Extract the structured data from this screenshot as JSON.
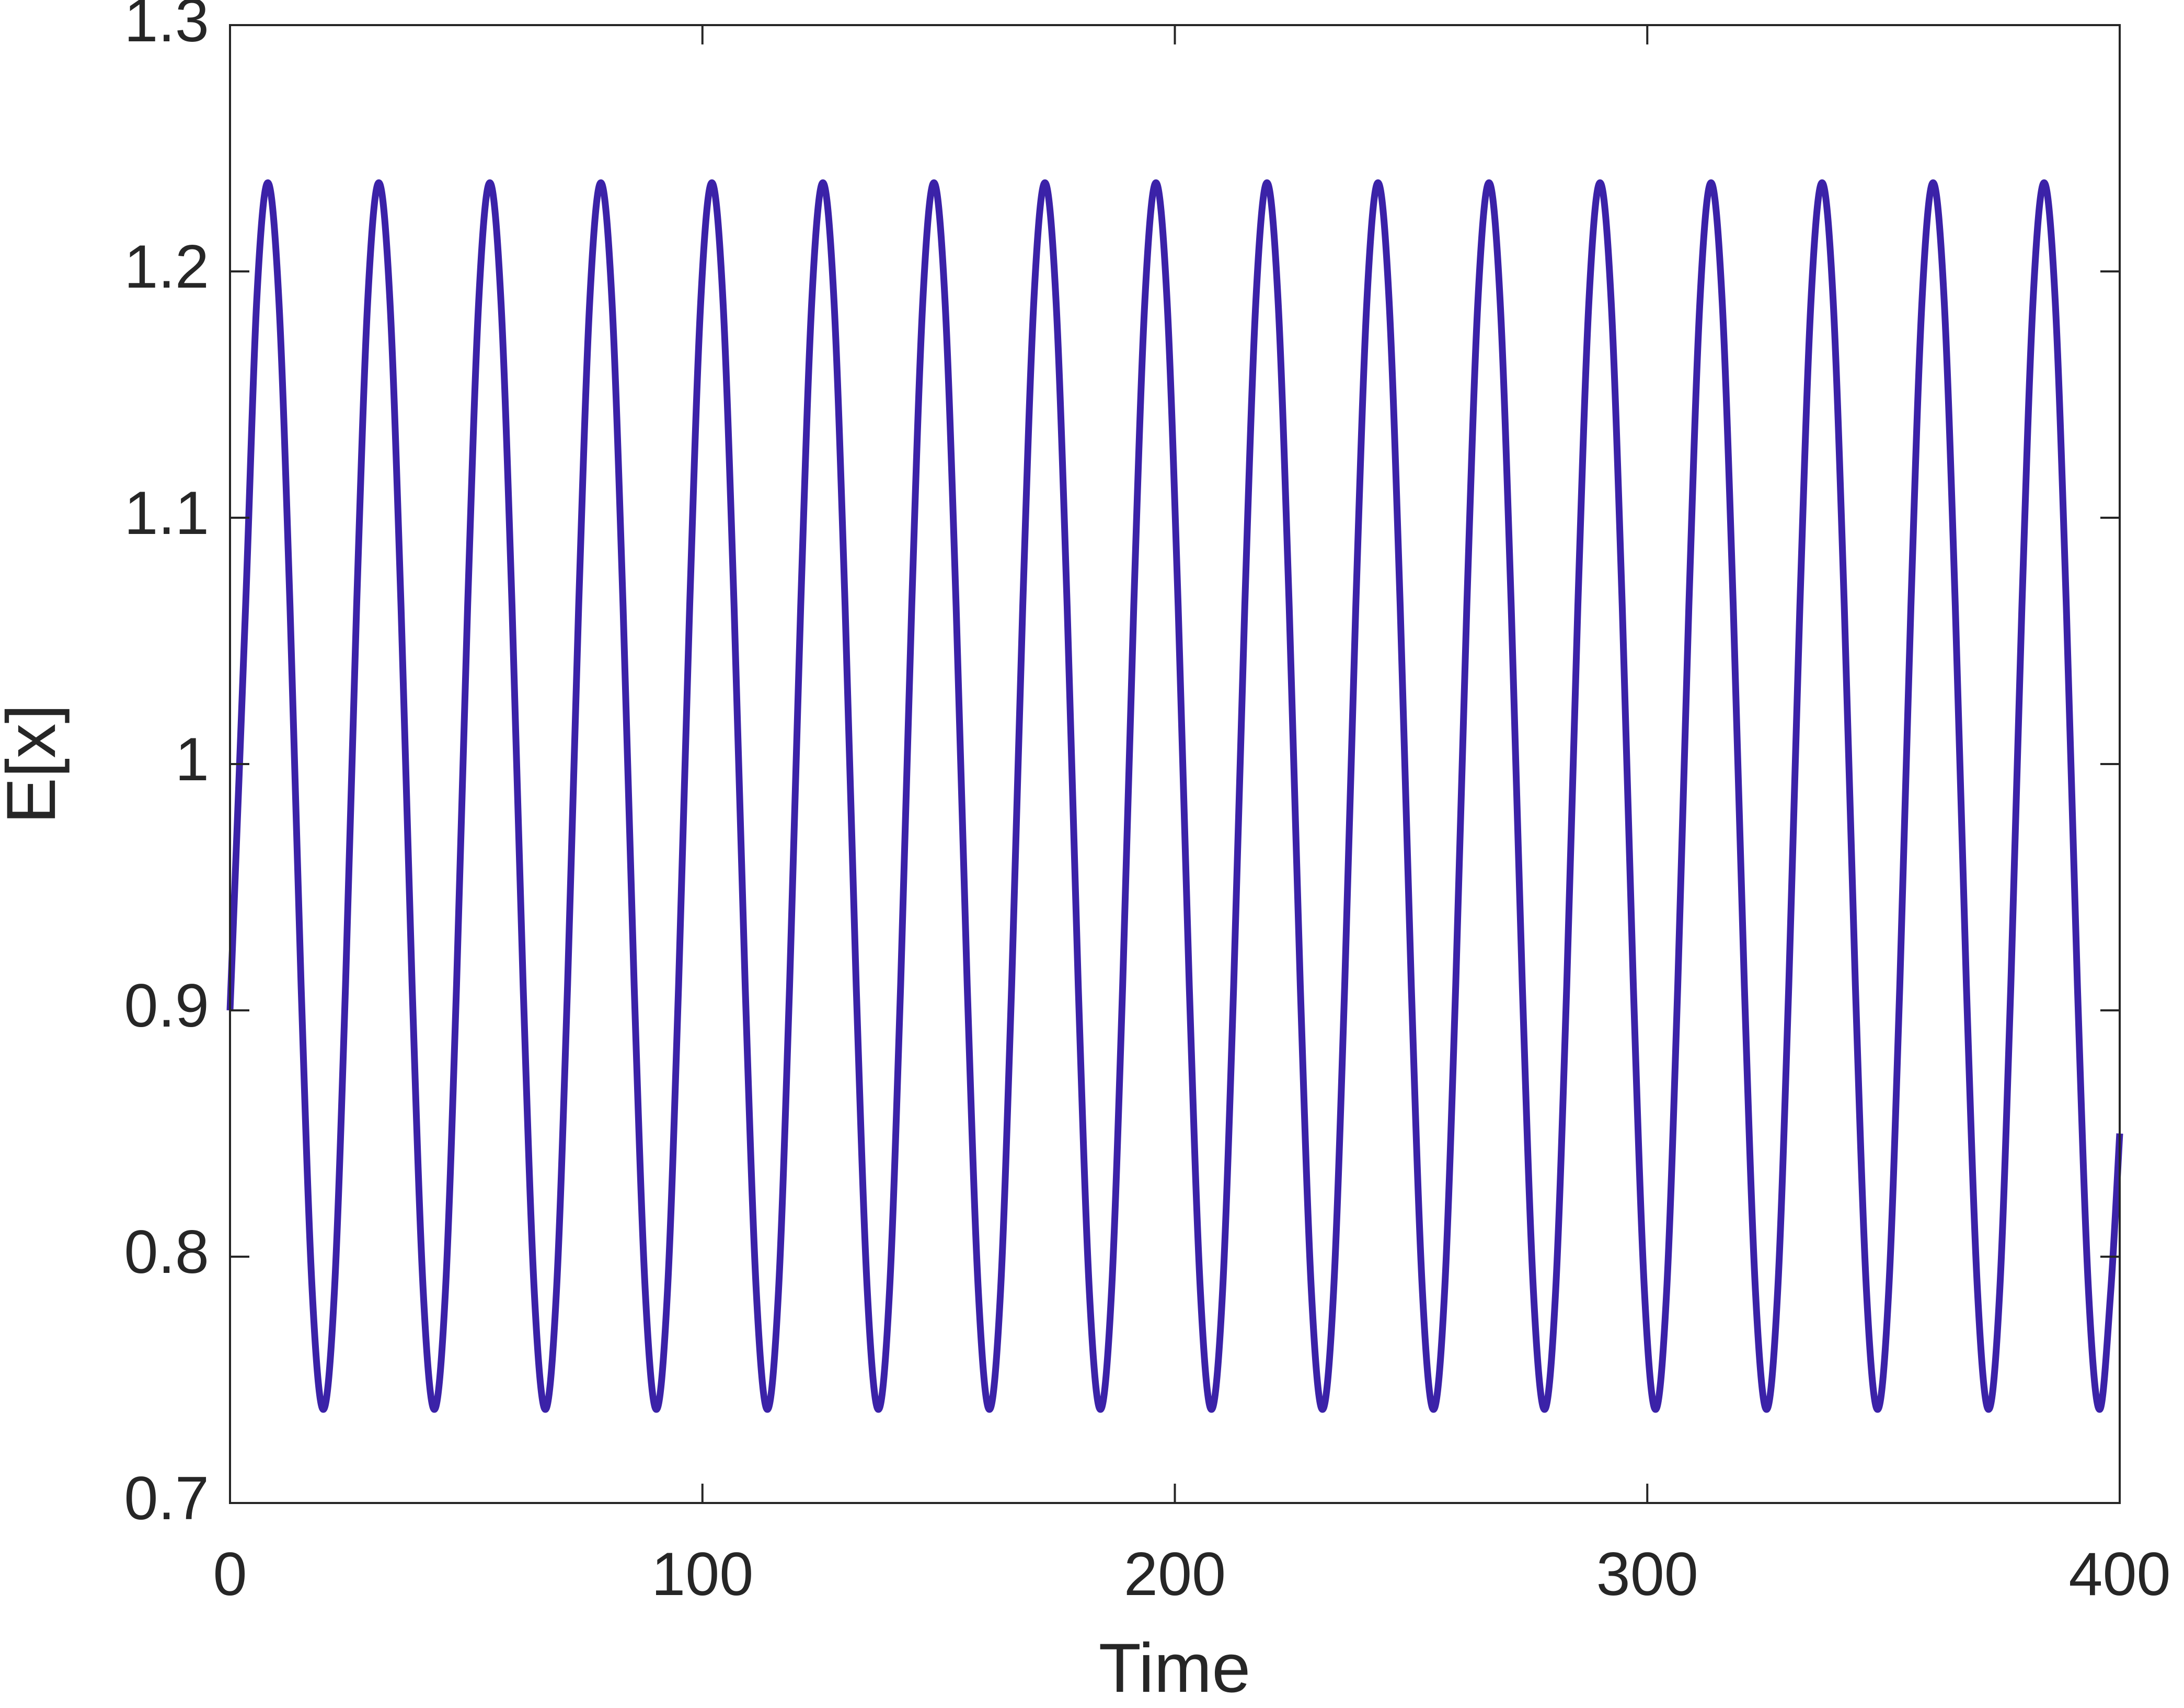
{
  "chart_data": {
    "type": "line",
    "xlabel": "Time",
    "ylabel": "E[x]",
    "xlim": [
      0,
      400
    ],
    "ylim": [
      0.7,
      1.3
    ],
    "xticks": [
      0,
      100,
      200,
      300,
      400
    ],
    "yticks": [
      0.7,
      0.8,
      0.9,
      1,
      1.1,
      1.2,
      1.3
    ],
    "x": [
      0,
      3.3,
      5.65,
      8,
      10.35,
      12.7,
      15.05,
      17.4,
      19.75,
      22.1,
      24.45,
      26.8,
      29.15,
      31.5,
      33.85,
      36.2,
      38.55,
      40.9,
      43.25,
      45.6,
      47.95,
      50.3,
      52.65,
      55,
      57.35,
      59.7,
      62.05,
      64.4,
      66.75,
      69.1,
      71.45,
      73.8,
      76.15,
      78.5,
      80.85,
      83.2,
      85.55,
      87.9,
      90.25,
      92.6,
      94.95,
      97.3,
      99.65,
      102,
      104.35,
      106.7,
      109.05,
      111.4,
      113.75,
      116.1,
      118.45,
      120.8,
      123.15,
      125.5,
      127.85,
      130.2,
      132.55,
      134.9,
      137.25,
      139.6,
      141.95,
      144.3,
      146.65,
      149,
      151.35,
      153.7,
      156.05,
      158.4,
      160.75,
      163.1,
      165.45,
      167.8,
      170.15,
      172.5,
      174.85,
      177.2,
      179.55,
      181.9,
      184.25,
      186.6,
      188.95,
      191.3,
      193.65,
      196,
      198.35,
      200.7,
      203.05,
      205.4,
      207.75,
      210.1,
      212.45,
      214.8,
      217.15,
      219.5,
      221.85,
      224.2,
      226.55,
      228.9,
      231.25,
      233.6,
      235.95,
      238.3,
      240.65,
      243,
      245.35,
      247.7,
      250.05,
      252.4,
      254.75,
      257.1,
      259.45,
      261.8,
      264.15,
      266.5,
      268.85,
      271.2,
      273.55,
      275.9,
      278.25,
      280.6,
      282.95,
      285.3,
      287.65,
      290,
      292.35,
      294.7,
      297.05,
      299.4,
      301.75,
      304.1,
      306.45,
      308.8,
      311.15,
      313.5,
      315.85,
      318.2,
      320.55,
      322.9,
      325.25,
      327.6,
      329.95,
      332.3,
      334.65,
      337,
      339.35,
      341.7,
      344.05,
      346.4,
      348.75,
      351.1,
      353.45,
      355.8,
      358.15,
      360.5,
      362.85,
      365.2,
      367.55,
      369.9,
      372.25,
      374.6,
      376.95,
      379.3,
      381.65,
      384,
      386.35,
      388.7,
      391.05,
      393.4,
      395.75,
      398.1,
      400
    ],
    "series": [
      {
        "color": "#3b22a8",
        "values": [
          0.9,
          1.064,
          1.188,
          1.236,
          1.188,
          1.064,
          0.91,
          0.786,
          0.738,
          0.786,
          0.91,
          1.064,
          1.188,
          1.236,
          1.188,
          1.064,
          0.91,
          0.786,
          0.738,
          0.786,
          0.91,
          1.064,
          1.188,
          1.236,
          1.188,
          1.064,
          0.91,
          0.786,
          0.738,
          0.786,
          0.91,
          1.064,
          1.188,
          1.236,
          1.188,
          1.064,
          0.91,
          0.786,
          0.738,
          0.786,
          0.91,
          1.064,
          1.188,
          1.236,
          1.188,
          1.064,
          0.91,
          0.786,
          0.738,
          0.786,
          0.91,
          1.064,
          1.188,
          1.236,
          1.188,
          1.064,
          0.91,
          0.786,
          0.738,
          0.786,
          0.91,
          1.064,
          1.188,
          1.236,
          1.188,
          1.064,
          0.91,
          0.786,
          0.738,
          0.786,
          0.91,
          1.064,
          1.188,
          1.236,
          1.188,
          1.064,
          0.91,
          0.786,
          0.738,
          0.786,
          0.91,
          1.064,
          1.188,
          1.236,
          1.188,
          1.064,
          0.91,
          0.786,
          0.738,
          0.786,
          0.91,
          1.064,
          1.188,
          1.236,
          1.188,
          1.064,
          0.91,
          0.786,
          0.738,
          0.786,
          0.91,
          1.064,
          1.188,
          1.236,
          1.188,
          1.064,
          0.91,
          0.786,
          0.738,
          0.786,
          0.91,
          1.064,
          1.188,
          1.236,
          1.188,
          1.064,
          0.91,
          0.786,
          0.738,
          0.786,
          0.91,
          1.064,
          1.188,
          1.236,
          1.188,
          1.064,
          0.91,
          0.786,
          0.738,
          0.786,
          0.91,
          1.064,
          1.188,
          1.236,
          1.188,
          1.064,
          0.91,
          0.786,
          0.738,
          0.786,
          0.91,
          1.064,
          1.188,
          1.236,
          1.188,
          1.064,
          0.91,
          0.786,
          0.738,
          0.786,
          0.91,
          1.064,
          1.188,
          1.236,
          1.188,
          1.064,
          0.91,
          0.786,
          0.738,
          0.786,
          0.91,
          1.064,
          1.188,
          1.236,
          1.188,
          1.064,
          0.91,
          0.786,
          0.738,
          0.786,
          0.85
        ]
      }
    ]
  }
}
